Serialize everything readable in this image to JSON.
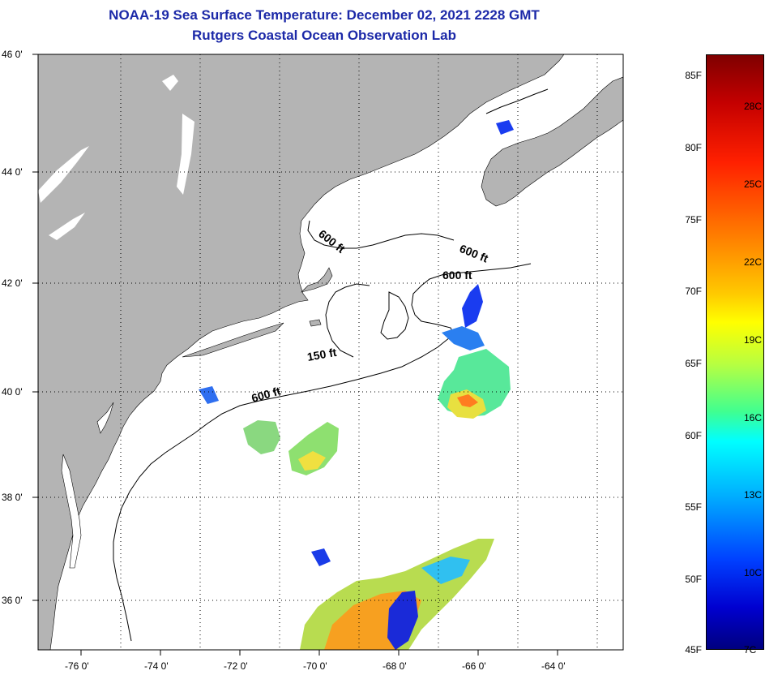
{
  "title": {
    "line1": "NOAA-19 Sea Surface Temperature:  December 02, 2021 2228 GMT",
    "line2": "Rutgers Coastal Ocean Observation Lab"
  },
  "map": {
    "lat_labels": [
      "46 0'",
      "44 0'",
      "42 0'",
      "40 0'",
      "38 0'",
      "36 0'"
    ],
    "lon_labels": [
      "-76 0'",
      "-74 0'",
      "-72 0'",
      "-70 0'",
      "-68 0'",
      "-66 0'",
      "-64 0'"
    ],
    "isobaths": [
      {
        "id": "iso-600-a",
        "label": "600 ft"
      },
      {
        "id": "iso-600-b",
        "label": "600 ft"
      },
      {
        "id": "iso-600-c",
        "label": "600 ft"
      },
      {
        "id": "iso-150",
        "label": "150 ft"
      },
      {
        "id": "iso-600-d",
        "label": "600 ft"
      }
    ],
    "colors": {
      "land": "#b4b4b4",
      "ocean": "#ffffff",
      "title": "#1c29a8"
    }
  },
  "colorbar": {
    "fahrenheit_labels": [
      "85F",
      "80F",
      "75F",
      "70F",
      "65F",
      "60F",
      "55F",
      "50F",
      "45F"
    ],
    "celsius_labels": [
      "28C",
      "25C",
      "22C",
      "19C",
      "16C",
      "13C",
      "10C",
      "7C"
    ]
  }
}
